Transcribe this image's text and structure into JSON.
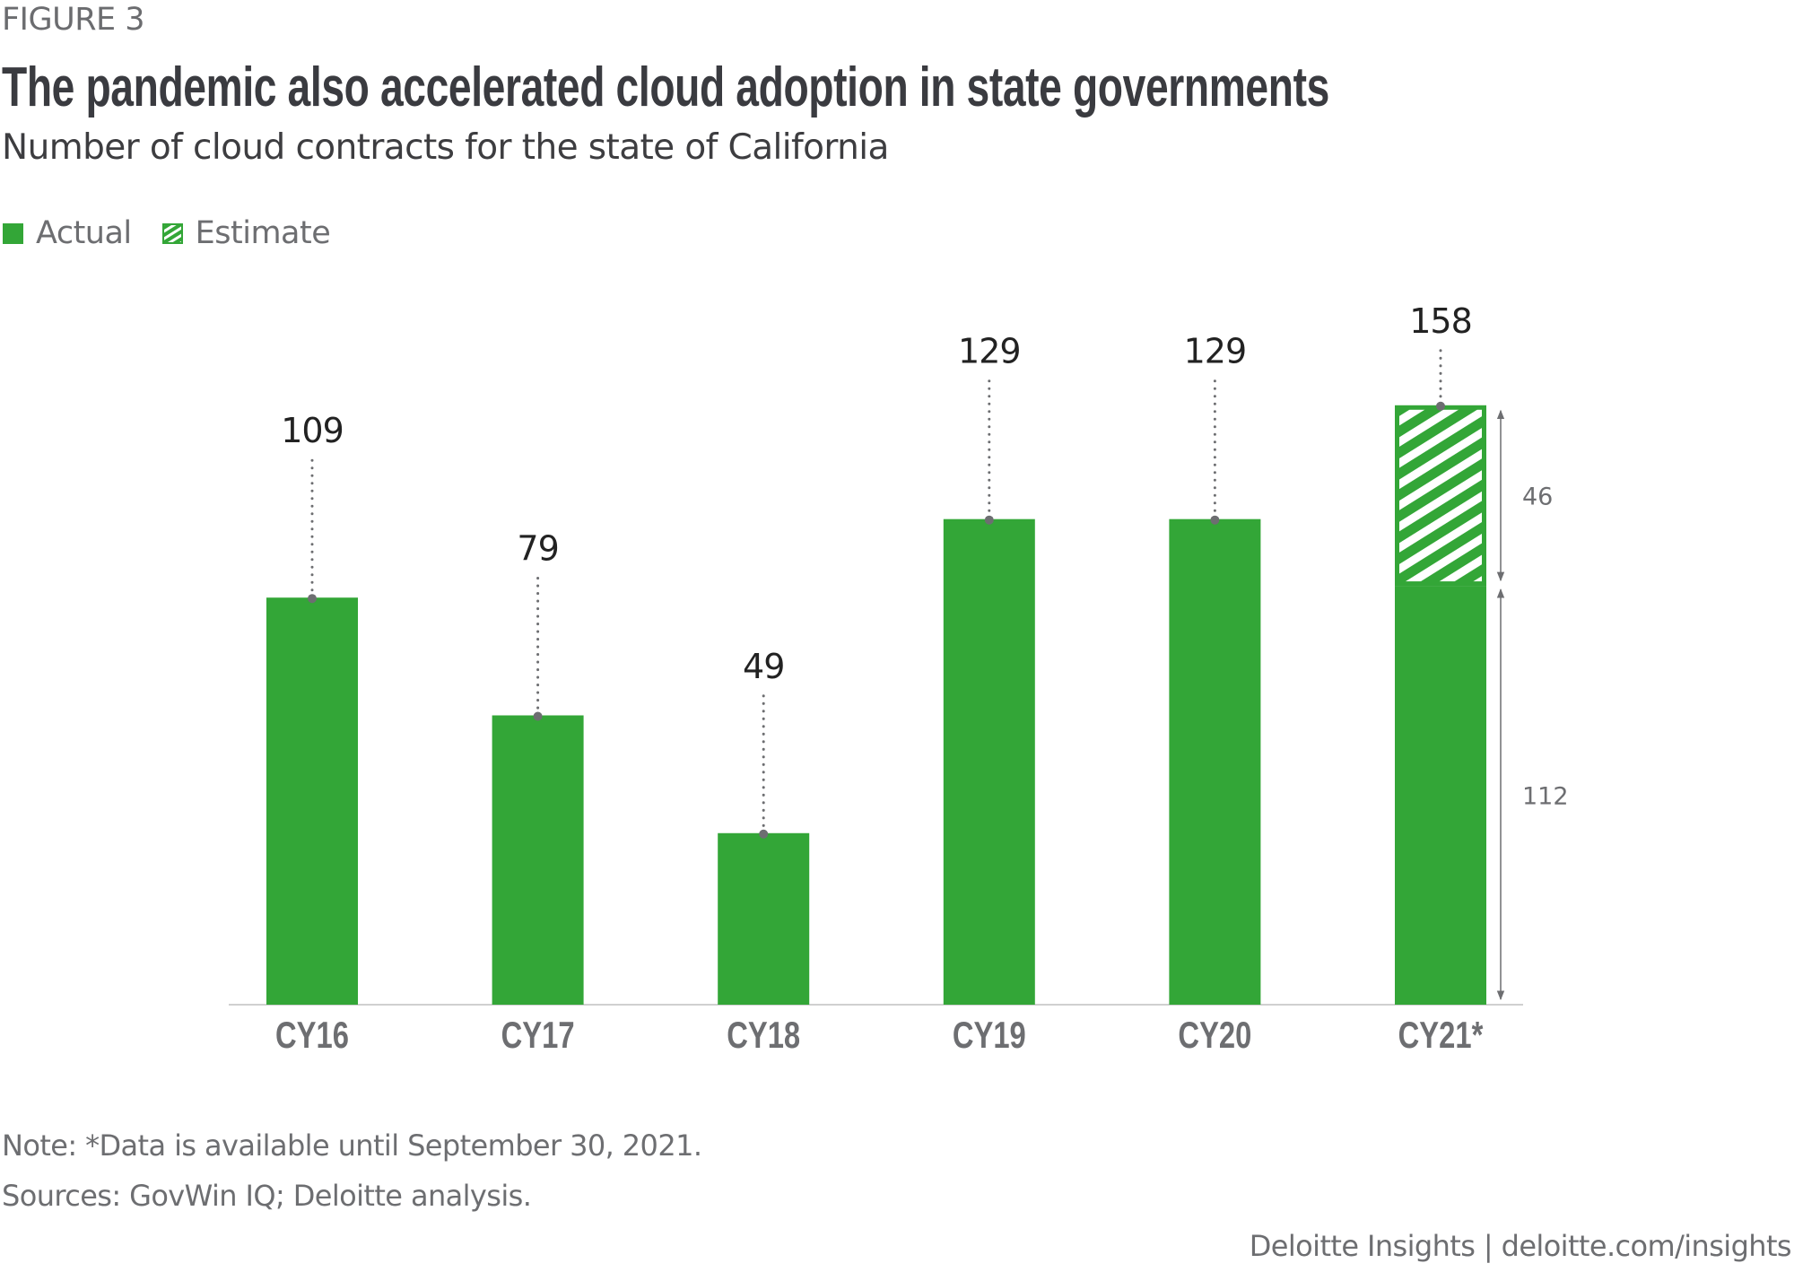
{
  "figure_label": "FIGURE 3",
  "title": "The pandemic also accelerated cloud adoption in state governments",
  "subtitle": "Number of cloud contracts for the state of California",
  "legend": [
    {
      "label": "Actual",
      "style": "solid"
    },
    {
      "label": "Estimate",
      "style": "hatched"
    }
  ],
  "colors": {
    "bar": "#33a637",
    "text_dark": "#3a3b40",
    "text_gray": "#6d6e71",
    "leader": "#6d6e71",
    "axis": "#cccccc"
  },
  "chart_data": {
    "type": "bar",
    "title": "The pandemic also accelerated cloud adoption in state governments",
    "subtitle": "Number of cloud contracts for the state of California",
    "xlabel": "",
    "ylabel": "Number of cloud contracts",
    "categories": [
      "CY16",
      "CY17",
      "CY18",
      "CY19",
      "CY20",
      "CY21*"
    ],
    "series": [
      {
        "name": "Actual",
        "values": [
          109,
          79,
          49,
          129,
          129,
          112
        ]
      },
      {
        "name": "Estimate",
        "values": [
          0,
          0,
          0,
          0,
          0,
          46
        ]
      }
    ],
    "totals": [
      109,
      79,
      49,
      129,
      129,
      158
    ],
    "data_labels": [
      "109",
      "79",
      "49",
      "129",
      "129",
      "158"
    ],
    "bracket_labels": {
      "CY21*": {
        "estimate": "46",
        "actual": "112"
      }
    },
    "stacked": true,
    "grid": false,
    "y_axis_visible": false,
    "legend_position": "top-left",
    "ylim": [
      5.3,
      160
    ]
  },
  "footer": {
    "note": "Note: *Data is available until September 30, 2021.",
    "sources": "Sources: GovWin IQ; Deloitte analysis.",
    "credit": "Deloitte Insights | deloitte.com/insights"
  }
}
